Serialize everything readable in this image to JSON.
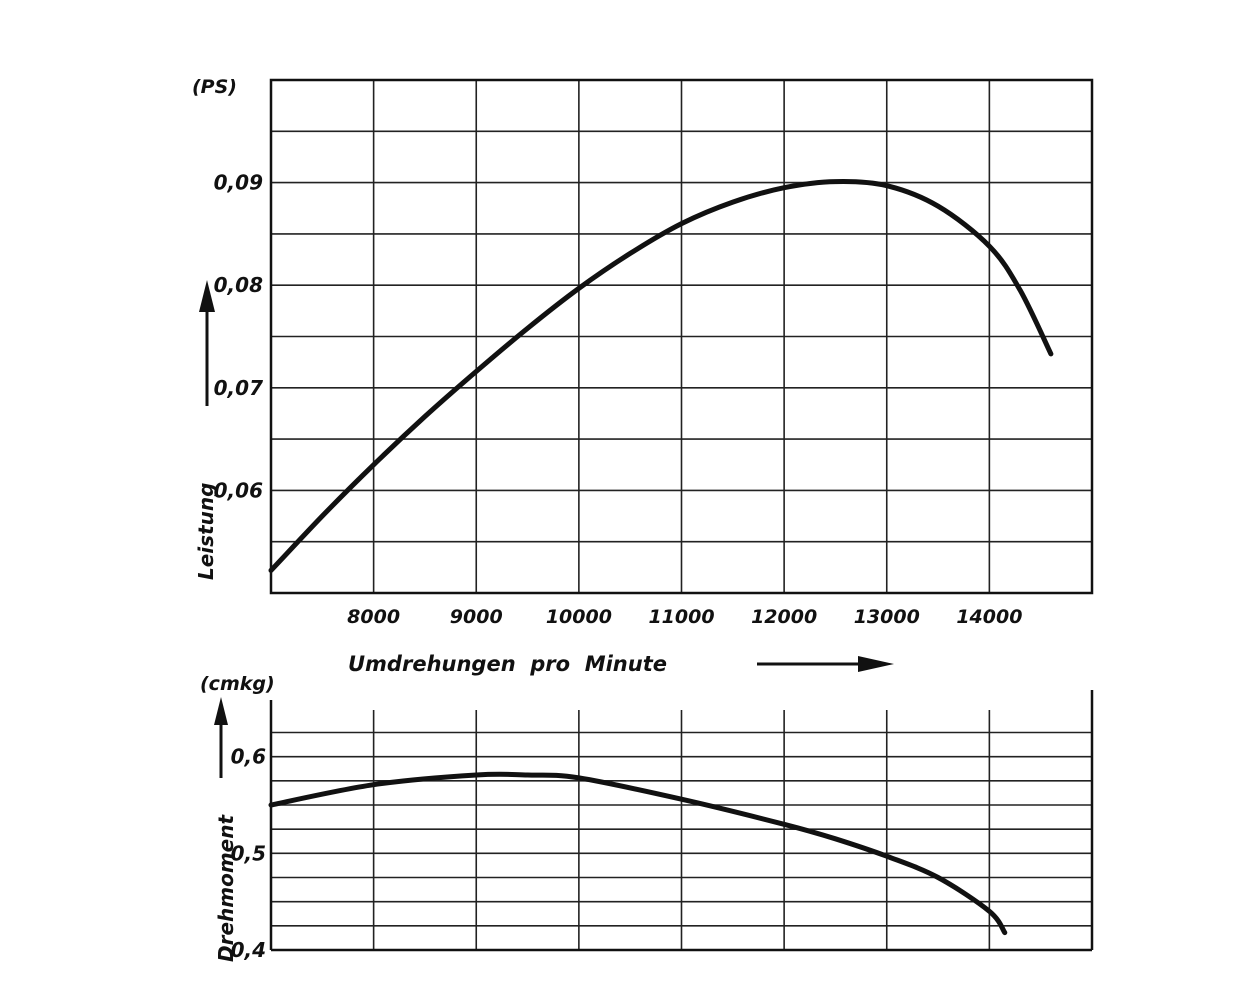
{
  "chart_data": [
    {
      "type": "line",
      "x_unit_label": "Umdrehungen  pro  Minute",
      "y_unit": "(PS)",
      "ylabel": "Leistung",
      "x_ticks": [
        8000,
        9000,
        10000,
        11000,
        12000,
        13000,
        14000
      ],
      "x_tick_labels": [
        "8000",
        "9000",
        "10000",
        "11000",
        "12000",
        "13000",
        "14000"
      ],
      "y_ticks": [
        0.06,
        0.07,
        0.08,
        0.09
      ],
      "y_tick_labels": [
        "0,06",
        "0,07",
        "0,08",
        "0,09"
      ],
      "xlim": [
        7000,
        15000
      ],
      "ylim": [
        0.05,
        0.1
      ],
      "grid": true,
      "series": [
        {
          "x": [
            7000,
            7500,
            8000,
            8500,
            9000,
            9500,
            10000,
            10500,
            11000,
            11500,
            12000,
            12500,
            13000,
            13500,
            14000,
            14300,
            14600
          ],
          "values": [
            0.0522,
            0.0575,
            0.0625,
            0.0672,
            0.0716,
            0.0758,
            0.0797,
            0.0831,
            0.086,
            0.0881,
            0.0895,
            0.0901,
            0.0897,
            0.0877,
            0.0838,
            0.0795,
            0.0733
          ]
        }
      ]
    },
    {
      "type": "line",
      "y_unit": "(cmkg)",
      "ylabel": "Drehmoment",
      "y_ticks": [
        0.4,
        0.5,
        0.6
      ],
      "y_tick_labels": [
        "0,4",
        "0,5",
        "0,6"
      ],
      "xlim": [
        7000,
        15000
      ],
      "ylim": [
        0.4,
        0.64
      ],
      "grid": true,
      "series": [
        {
          "x": [
            7000,
            8000,
            9000,
            9500,
            10000,
            11000,
            12000,
            12500,
            13000,
            13500,
            14000,
            14150
          ],
          "values": [
            0.55,
            0.571,
            0.581,
            0.581,
            0.578,
            0.556,
            0.53,
            0.515,
            0.497,
            0.475,
            0.44,
            0.418
          ]
        }
      ]
    }
  ]
}
